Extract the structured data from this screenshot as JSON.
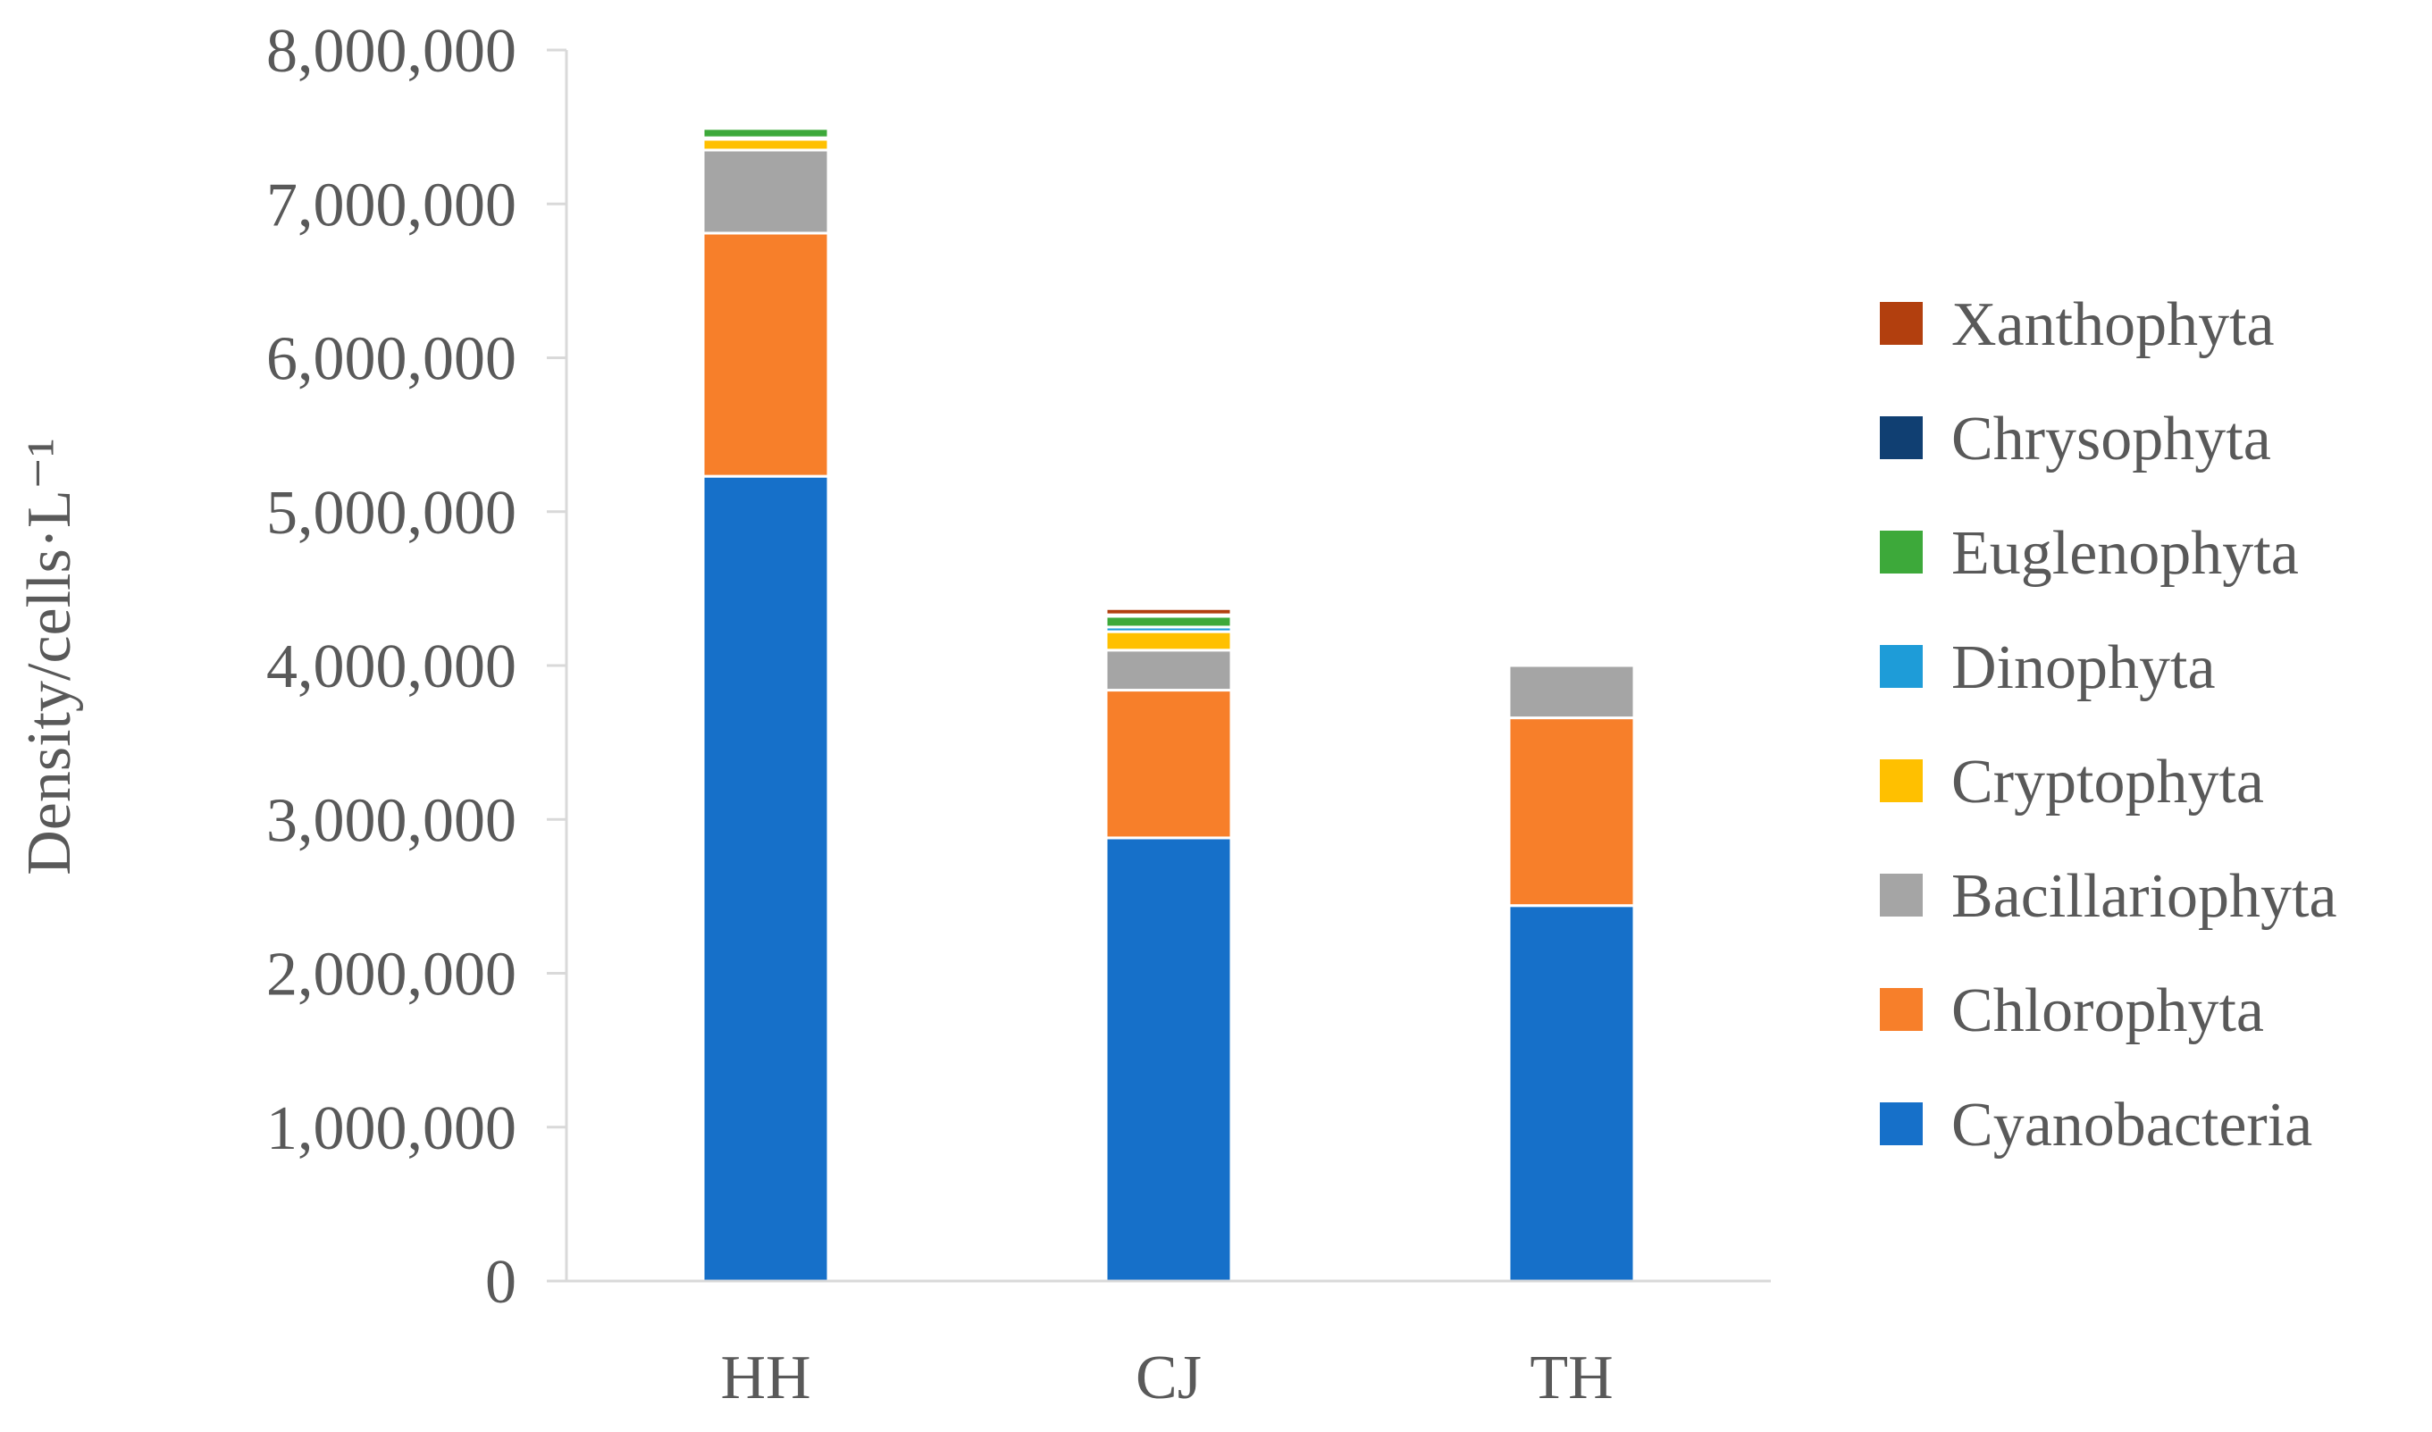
{
  "chart_data": {
    "type": "bar",
    "stacked": true,
    "title": "",
    "xlabel": "",
    "ylabel": "Density/cells·L⁻¹",
    "ylim": [
      0,
      8000000
    ],
    "ytick_values": [
      0,
      1000000,
      2000000,
      3000000,
      4000000,
      5000000,
      6000000,
      7000000,
      8000000
    ],
    "ytick_labels": [
      "0",
      "1,000,000",
      "2,000,000",
      "3,000,000",
      "4,000,000",
      "5,000,000",
      "6,000,000",
      "7,000,000",
      "8,000,000"
    ],
    "grid": false,
    "legend_position": "right",
    "categories": [
      "HH",
      "CJ",
      "TH"
    ],
    "series": [
      {
        "name": "Cyanobacteria",
        "color": "#1670C9",
        "values": [
          5230000,
          2880000,
          2440000
        ]
      },
      {
        "name": "Chlorophyta",
        "color": "#F77F2A",
        "values": [
          1580000,
          960000,
          1220000
        ]
      },
      {
        "name": "Bacillariophyta",
        "color": "#A5A5A5",
        "values": [
          540000,
          260000,
          340000
        ]
      },
      {
        "name": "Cryptophyta",
        "color": "#FFC000",
        "values": [
          70000,
          120000,
          0
        ]
      },
      {
        "name": "Dinophyta",
        "color": "#1E9CD8",
        "values": [
          10000,
          30000,
          0
        ]
      },
      {
        "name": "Euglenophyta",
        "color": "#3DA93A",
        "values": [
          60000,
          70000,
          0
        ]
      },
      {
        "name": "Chrysophyta",
        "color": "#103F72",
        "values": [
          0,
          10000,
          0
        ]
      },
      {
        "name": "Xanthophyta",
        "color": "#B23F0E",
        "values": [
          0,
          40000,
          0
        ]
      }
    ]
  }
}
